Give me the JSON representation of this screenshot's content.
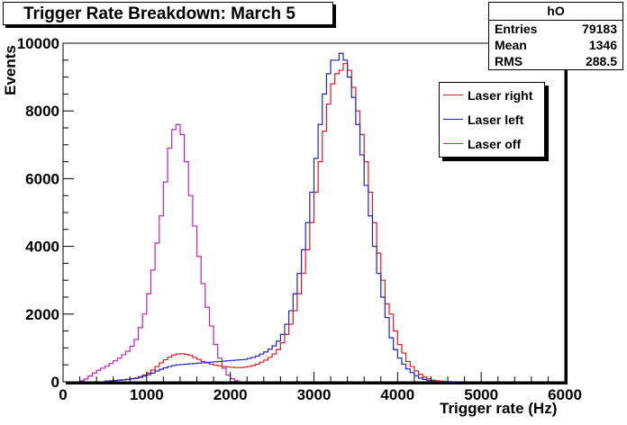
{
  "title": "Trigger Rate Breakdown: March 5",
  "stats": {
    "name": "hO",
    "rows": [
      {
        "label": "Entries",
        "value": "79183"
      },
      {
        "label": "Mean",
        "value": "1346"
      },
      {
        "label": "RMS",
        "value": "288.5"
      }
    ]
  },
  "legend": {
    "placement": "top-right",
    "items": [
      {
        "label": "Laser right",
        "color": "#e8141b"
      },
      {
        "label": "Laser left",
        "color": "#1a24c8"
      },
      {
        "label": "Laser off",
        "color": "#c020c8"
      }
    ]
  },
  "chart_data": {
    "type": "histogram",
    "title": "Trigger Rate Breakdown: March 5",
    "xlabel": "Trigger rate (Hz)",
    "ylabel": "Events",
    "xlim": [
      0,
      6000
    ],
    "ylim": [
      0,
      10000
    ],
    "xticks": [
      0,
      1000,
      2000,
      3000,
      4000,
      5000,
      6000
    ],
    "yticks": [
      0,
      2000,
      4000,
      6000,
      8000,
      10000
    ],
    "grid": false,
    "bin_width": 50,
    "series": [
      {
        "name": "Laser off",
        "color": "#c020c8",
        "x": [
          200,
          250,
          300,
          350,
          400,
          450,
          500,
          550,
          600,
          650,
          700,
          750,
          800,
          850,
          900,
          950,
          1000,
          1050,
          1100,
          1150,
          1200,
          1250,
          1300,
          1350,
          1400,
          1450,
          1500,
          1550,
          1600,
          1650,
          1700,
          1750,
          1800,
          1850,
          1900,
          1950,
          2000,
          2050
        ],
        "values": [
          30,
          80,
          170,
          260,
          340,
          400,
          460,
          540,
          620,
          700,
          800,
          900,
          1050,
          1250,
          1600,
          2000,
          2600,
          3300,
          4100,
          4900,
          5900,
          6900,
          7450,
          7600,
          7300,
          6500,
          5500,
          4600,
          3700,
          2900,
          2200,
          1650,
          1100,
          700,
          400,
          200,
          90,
          30
        ]
      },
      {
        "name": "Laser right",
        "color": "#e8141b",
        "x": [
          500,
          550,
          600,
          650,
          700,
          750,
          800,
          850,
          900,
          950,
          1000,
          1050,
          1100,
          1150,
          1200,
          1250,
          1300,
          1350,
          1400,
          1450,
          1500,
          1550,
          1600,
          1650,
          1700,
          1750,
          1800,
          1850,
          1900,
          1950,
          2000,
          2050,
          2100,
          2150,
          2200,
          2250,
          2300,
          2350,
          2400,
          2450,
          2500,
          2550,
          2600,
          2650,
          2700,
          2750,
          2800,
          2850,
          2900,
          2950,
          3000,
          3050,
          3100,
          3150,
          3200,
          3250,
          3300,
          3350,
          3400,
          3450,
          3500,
          3550,
          3600,
          3650,
          3700,
          3750,
          3800,
          3850,
          3900,
          3950,
          4000,
          4050,
          4100,
          4150,
          4200,
          4250,
          4300,
          4350,
          4400,
          4450,
          4500,
          4550,
          4600,
          4650
        ],
        "values": [
          20,
          30,
          40,
          50,
          60,
          70,
          90,
          110,
          150,
          200,
          260,
          350,
          450,
          560,
          650,
          730,
          790,
          820,
          830,
          810,
          780,
          720,
          660,
          600,
          560,
          520,
          490,
          470,
          450,
          440,
          430,
          420,
          420,
          430,
          450,
          480,
          520,
          580,
          640,
          720,
          820,
          950,
          1150,
          1400,
          1700,
          2100,
          2600,
          3200,
          3900,
          4700,
          5600,
          6500,
          7400,
          8200,
          8800,
          9100,
          9200,
          9400,
          9200,
          8700,
          8000,
          7300,
          6500,
          5600,
          4700,
          3800,
          3000,
          2300,
          2000,
          1500,
          1100,
          850,
          600,
          450,
          320,
          220,
          140,
          90,
          50,
          30,
          20,
          10,
          5,
          2
        ]
      },
      {
        "name": "Laser left",
        "color": "#1a24c8",
        "x": [
          500,
          550,
          600,
          650,
          700,
          750,
          800,
          850,
          900,
          950,
          1000,
          1050,
          1100,
          1150,
          1200,
          1250,
          1300,
          1350,
          1400,
          1450,
          1500,
          1550,
          1600,
          1650,
          1700,
          1750,
          1800,
          1850,
          1900,
          1950,
          2000,
          2050,
          2100,
          2150,
          2200,
          2250,
          2300,
          2350,
          2400,
          2450,
          2500,
          2550,
          2600,
          2650,
          2700,
          2750,
          2800,
          2850,
          2900,
          2950,
          3000,
          3050,
          3100,
          3150,
          3200,
          3250,
          3300,
          3350,
          3400,
          3450,
          3500,
          3550,
          3600,
          3650,
          3700,
          3750,
          3800,
          3850,
          3900,
          3950,
          4000,
          4050,
          4100,
          4150,
          4200,
          4250,
          4300,
          4350,
          4400,
          4450,
          4500,
          4550,
          4600,
          4650
        ],
        "values": [
          20,
          25,
          35,
          45,
          55,
          70,
          85,
          100,
          130,
          170,
          210,
          260,
          320,
          370,
          410,
          450,
          480,
          500,
          510,
          520,
          530,
          540,
          550,
          560,
          570,
          580,
          590,
          600,
          610,
          620,
          630,
          640,
          650,
          660,
          690,
          720,
          760,
          820,
          880,
          960,
          1060,
          1200,
          1400,
          1700,
          2100,
          2600,
          3200,
          3900,
          4700,
          5600,
          6600,
          7600,
          8500,
          9100,
          9500,
          9500,
          9700,
          9500,
          9000,
          8400,
          7600,
          6700,
          5800,
          4900,
          4000,
          3200,
          2500,
          1900,
          1300,
          950,
          700,
          520,
          380,
          270,
          180,
          110,
          70,
          40,
          20,
          10,
          5,
          3,
          1,
          1
        ]
      }
    ]
  }
}
